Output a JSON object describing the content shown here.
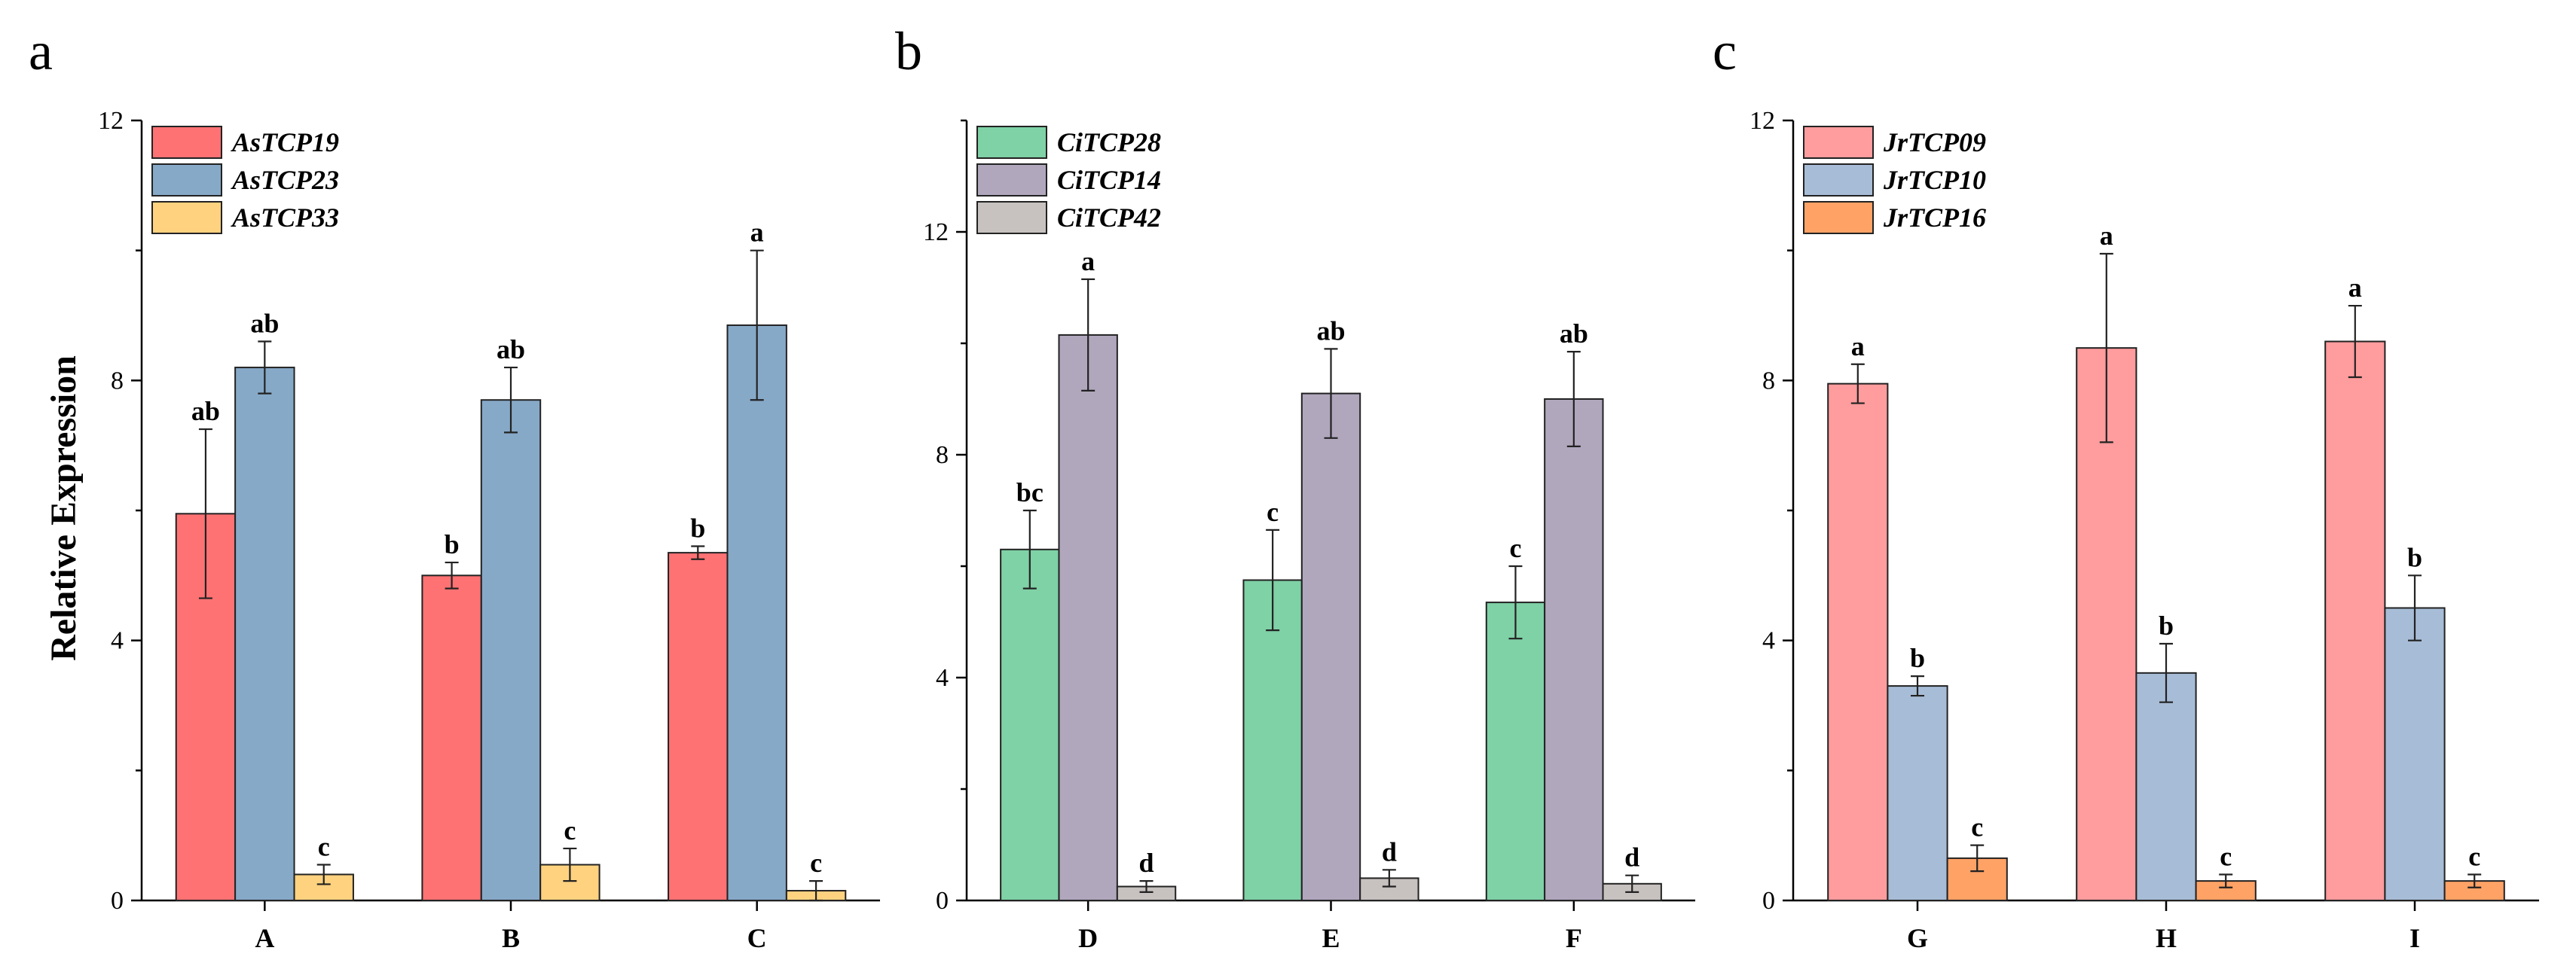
{
  "ylabel": "Relative Expression",
  "chart_data": [
    {
      "type": "bar",
      "panel": "a",
      "categories": [
        "A",
        "B",
        "C"
      ],
      "ylim": [
        0,
        12
      ],
      "yticks": [
        "0",
        "4",
        "8",
        "12"
      ],
      "series": [
        {
          "name": "AsTCP19",
          "color": "#ff7274",
          "values": [
            5.95,
            5.0,
            5.35
          ],
          "errors": [
            1.3,
            0.2,
            0.1
          ],
          "labels": [
            "ab",
            "b",
            "b"
          ]
        },
        {
          "name": "AsTCP23",
          "color": "#87a9c8",
          "values": [
            8.2,
            7.7,
            8.85
          ],
          "errors": [
            0.4,
            0.5,
            1.15
          ],
          "labels": [
            "ab",
            "ab",
            "a"
          ]
        },
        {
          "name": "AsTCP33",
          "color": "#ffd27f",
          "values": [
            0.4,
            0.55,
            0.15
          ],
          "errors": [
            0.15,
            0.25,
            0.15
          ],
          "labels": [
            "c",
            "c",
            "c"
          ]
        }
      ]
    },
    {
      "type": "bar",
      "panel": "b",
      "categories": [
        "D",
        "E",
        "F"
      ],
      "ylim": [
        0,
        14
      ],
      "yticks": [
        "0",
        "4",
        "8",
        "12"
      ],
      "series": [
        {
          "name": "CiTCP28",
          "color": "#7fd1a6",
          "values": [
            6.3,
            5.75,
            5.35
          ],
          "errors": [
            0.7,
            0.9,
            0.65
          ],
          "labels": [
            "bc",
            "c",
            "c"
          ]
        },
        {
          "name": "CiTCP14",
          "color": "#b0a7bd",
          "values": [
            10.15,
            9.1,
            9.0
          ],
          "errors": [
            1.0,
            0.8,
            0.85
          ],
          "labels": [
            "a",
            "ab",
            "ab"
          ]
        },
        {
          "name": "CiTCP42",
          "color": "#c7c1c0",
          "values": [
            0.25,
            0.4,
            0.3
          ],
          "errors": [
            0.1,
            0.15,
            0.15
          ],
          "labels": [
            "d",
            "d",
            "d"
          ]
        }
      ]
    },
    {
      "type": "bar",
      "panel": "c",
      "categories": [
        "G",
        "H",
        "I"
      ],
      "ylim": [
        0,
        12
      ],
      "yticks": [
        "0",
        "4",
        "8",
        "12"
      ],
      "series": [
        {
          "name": "JrTCP09",
          "color": "#ff9c9d",
          "values": [
            7.95,
            8.5,
            8.6
          ],
          "errors": [
            0.3,
            1.45,
            0.55
          ],
          "labels": [
            "a",
            "a",
            "a"
          ]
        },
        {
          "name": "JrTCP10",
          "color": "#a7bcd6",
          "values": [
            3.3,
            3.5,
            4.5
          ],
          "errors": [
            0.15,
            0.45,
            0.5
          ],
          "labels": [
            "b",
            "b",
            "b"
          ]
        },
        {
          "name": "JrTCP16",
          "color": "#ffa266",
          "values": [
            0.65,
            0.3,
            0.3
          ],
          "errors": [
            0.2,
            0.1,
            0.1
          ],
          "labels": [
            "c",
            "c",
            "c"
          ]
        }
      ]
    }
  ]
}
